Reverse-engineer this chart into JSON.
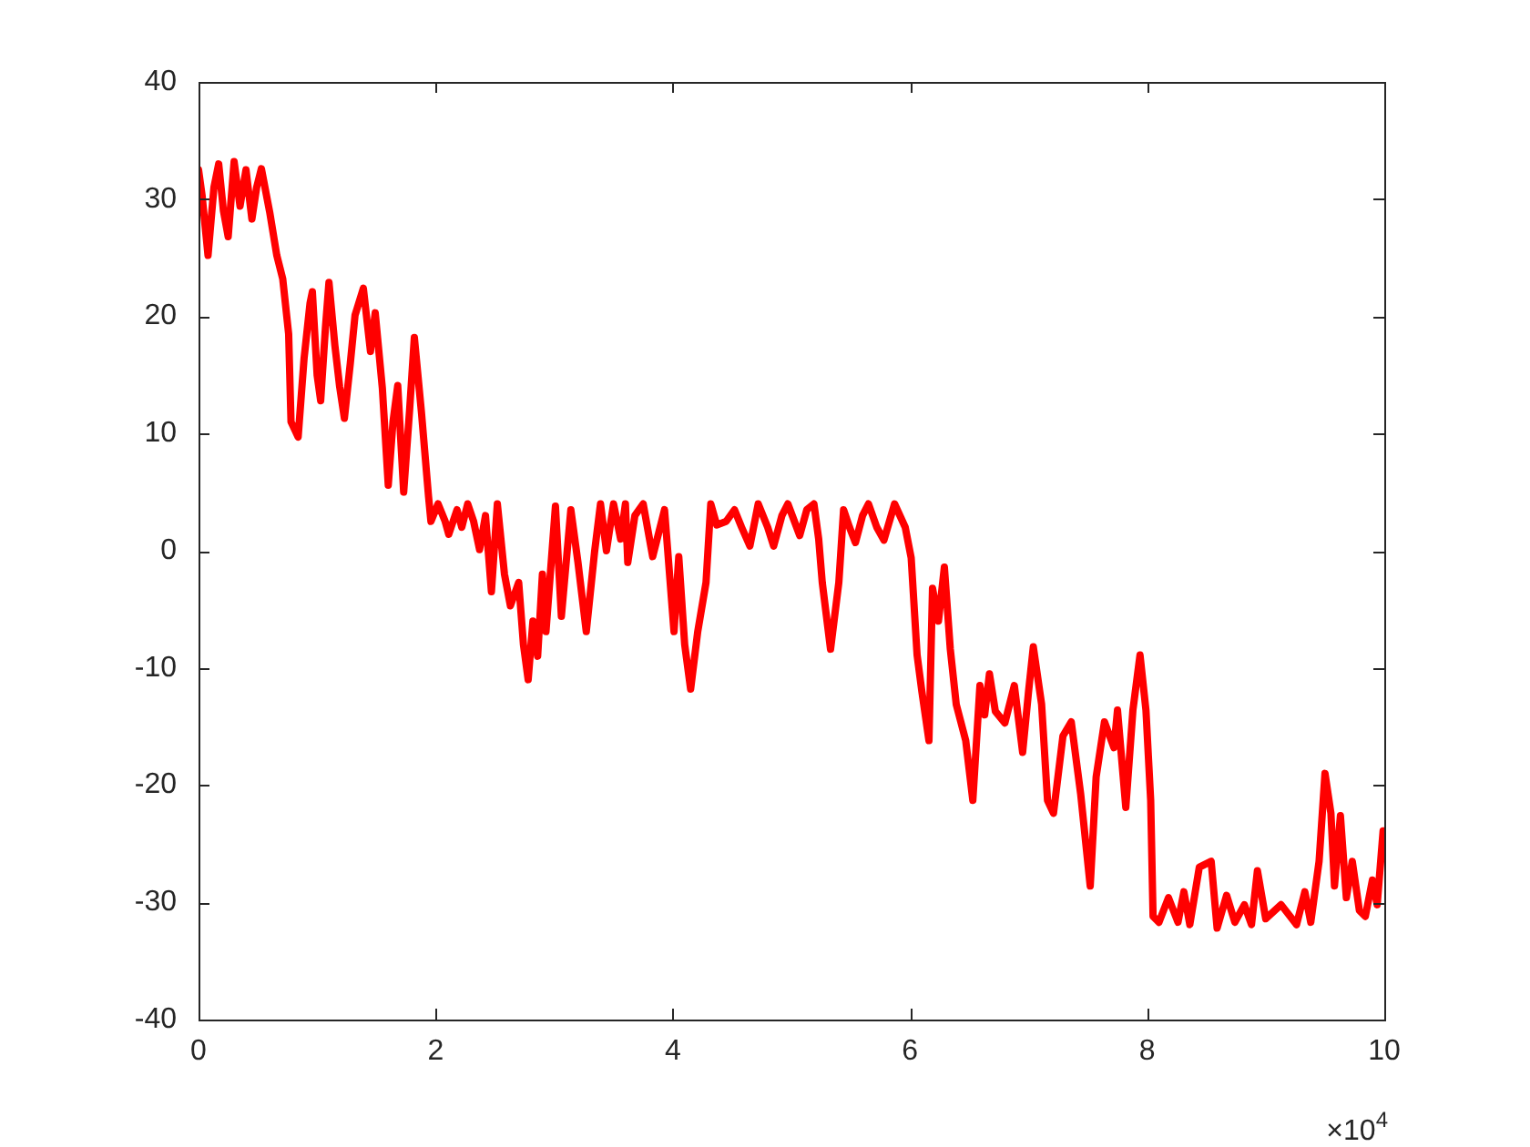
{
  "chart_data": {
    "type": "line",
    "xlim": [
      0,
      10
    ],
    "xticks": [
      0,
      2,
      4,
      6,
      8,
      10
    ],
    "ylim": [
      -40,
      40
    ],
    "yticks": [
      -40,
      -30,
      -20,
      -10,
      0,
      10,
      20,
      30,
      40
    ],
    "grid": false,
    "annotations": [
      "×10$^{4}$"
    ],
    "series": [
      {
        "color": "#ff0000",
        "x": [
          0.0,
          0.03,
          0.08,
          0.13,
          0.17,
          0.21,
          0.25,
          0.3,
          0.35,
          0.4,
          0.45,
          0.49,
          0.53,
          0.6,
          0.66,
          0.71,
          0.76,
          0.78,
          0.84,
          0.89,
          0.94,
          0.96,
          1.0,
          1.03,
          1.07,
          1.1,
          1.15,
          1.19,
          1.23,
          1.28,
          1.32,
          1.39,
          1.45,
          1.49,
          1.55,
          1.6,
          1.64,
          1.68,
          1.73,
          1.78,
          1.82,
          1.88,
          1.94,
          1.96,
          2.02,
          2.08,
          2.11,
          2.18,
          2.22,
          2.27,
          2.32,
          2.37,
          2.42,
          2.47,
          2.52,
          2.58,
          2.63,
          2.7,
          2.74,
          2.78,
          2.82,
          2.86,
          2.9,
          2.93,
          3.01,
          3.06,
          3.14,
          3.2,
          3.27,
          3.34,
          3.39,
          3.44,
          3.5,
          3.56,
          3.6,
          3.62,
          3.68,
          3.75,
          3.83,
          3.93,
          4.01,
          4.05,
          4.1,
          4.15,
          4.21,
          4.28,
          4.32,
          4.37,
          4.45,
          4.52,
          4.58,
          4.65,
          4.72,
          4.8,
          4.85,
          4.92,
          4.97,
          5.07,
          5.13,
          5.19,
          5.23,
          5.26,
          5.33,
          5.4,
          5.44,
          5.49,
          5.54,
          5.6,
          5.65,
          5.72,
          5.78,
          5.87,
          5.96,
          6.01,
          6.06,
          6.1,
          6.16,
          6.19,
          6.24,
          6.29,
          6.34,
          6.39,
          6.47,
          6.53,
          6.59,
          6.63,
          6.67,
          6.72,
          6.8,
          6.88,
          6.95,
          7.0,
          7.04,
          7.11,
          7.16,
          7.21,
          7.29,
          7.36,
          7.44,
          7.52,
          7.57,
          7.64,
          7.72,
          7.75,
          7.82,
          7.88,
          7.94,
          7.99,
          8.03,
          8.05,
          8.1,
          8.18,
          8.26,
          8.31,
          8.36,
          8.44,
          8.54,
          8.59,
          8.67,
          8.74,
          8.82,
          8.88,
          8.93,
          9.0,
          9.13,
          9.26,
          9.33,
          9.38,
          9.45,
          9.5,
          9.55,
          9.58,
          9.63,
          9.68,
          9.73,
          9.79,
          9.84,
          9.9,
          9.94,
          9.99
        ],
        "values": [
          32.5,
          30.3,
          25.2,
          31,
          33,
          29,
          26.8,
          33.2,
          29.4,
          32.5,
          28.3,
          31,
          32.6,
          28.9,
          25.2,
          23.2,
          18.5,
          11.0,
          9.7,
          16.4,
          21.1,
          22.1,
          15,
          12.8,
          19,
          22.9,
          17.5,
          14,
          11.3,
          16,
          20.1,
          22.4,
          17.0,
          20.3,
          13.9,
          5.6,
          11,
          14.1,
          5.0,
          12,
          18.2,
          11.8,
          4.6,
          2.5,
          4,
          2.5,
          1.4,
          3.5,
          2,
          4,
          2.5,
          0.1,
          3,
          -3.5,
          4,
          -2,
          -4.7,
          -2.7,
          -8,
          -11,
          -6,
          -9,
          -2,
          -6.9,
          3.8,
          -5.6,
          3.5,
          -1,
          -6.9,
          -0.1,
          4,
          0,
          4,
          1,
          4,
          -1,
          3,
          4,
          -0.5,
          3.5,
          -6.9,
          -0.5,
          -8,
          -11.8,
          -6.9,
          -2.7,
          4,
          2.2,
          2.5,
          3.5,
          2,
          0.4,
          4,
          2,
          0.4,
          3,
          4,
          1.3,
          3.5,
          4,
          1,
          -2.7,
          -8.4,
          -2.7,
          3.5,
          2,
          0.7,
          3,
          4,
          2,
          0.9,
          4,
          2,
          -0.6,
          -8.9,
          -12,
          -16.2,
          -3.2,
          -6,
          -1.4,
          -8.4,
          -13.1,
          -16.2,
          -21.3,
          -11.5,
          -14,
          -10.5,
          -13.7,
          -14.7,
          -11.5,
          -17.2,
          -12,
          -8.2,
          -13.1,
          -21.3,
          -22.4,
          -15.8,
          -14.6,
          -20.8,
          -28.6,
          -19.3,
          -14.6,
          -16.8,
          -13.6,
          -21.9,
          -13.6,
          -8.9,
          -13.6,
          -21.3,
          -31.2,
          -31.7,
          -29.6,
          -31.7,
          -29.1,
          -31.9,
          -27.0,
          -26.5,
          -32.2,
          -29.4,
          -31.7,
          -30.2,
          -31.9,
          -27.3,
          -31.4,
          -30.2,
          -31.9,
          -29.1,
          -31.7,
          -26.5,
          -19.0,
          -22.4,
          -28.6,
          -22.6,
          -29.6,
          -26.5,
          -30.7,
          -31.2,
          -28.1,
          -30.2,
          -23.9
        ]
      }
    ]
  }
}
